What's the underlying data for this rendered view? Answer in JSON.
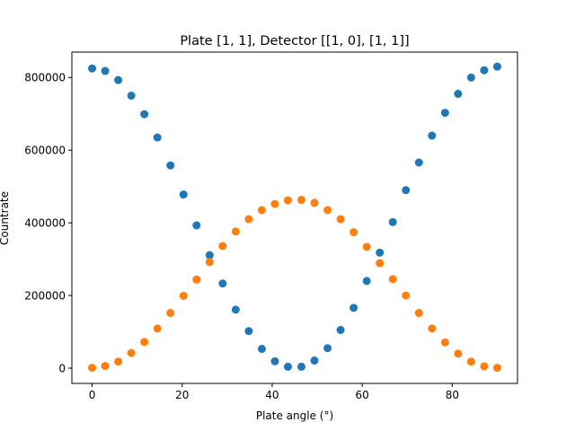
{
  "chart_data": {
    "type": "scatter",
    "title": "Plate [1, 1], Detector [[1, 0], [1, 1]]",
    "xlabel": "Plate angle (°)",
    "ylabel": "Countrate",
    "xlim": [
      -4.5,
      94.5
    ],
    "ylim": [
      -42000,
      870000
    ],
    "xticks": [
      0,
      20,
      40,
      60,
      80
    ],
    "yticks": [
      0,
      200000,
      400000,
      600000,
      800000
    ],
    "grid": false,
    "series": [
      {
        "color": "#1f77b4",
        "x": [
          0,
          2.9,
          5.8,
          8.7,
          11.6,
          14.5,
          17.4,
          20.3,
          23.2,
          26.1,
          29.0,
          31.9,
          34.8,
          37.7,
          40.6,
          43.5,
          46.5,
          49.4,
          52.3,
          55.2,
          58.1,
          61.0,
          63.9,
          66.8,
          69.7,
          72.6,
          75.5,
          78.4,
          81.3,
          84.2,
          87.1,
          90.0
        ],
        "y": [
          825000,
          818000,
          793000,
          750000,
          699000,
          635000,
          558000,
          478000,
          393000,
          311000,
          233000,
          161000,
          102000,
          53000,
          19000,
          4000,
          4000,
          21000,
          55000,
          105000,
          166000,
          240000,
          318000,
          402000,
          490000,
          566000,
          640000,
          703000,
          755000,
          800000,
          820000,
          830000
        ]
      },
      {
        "color": "#ff7f0e",
        "x": [
          0,
          2.9,
          5.8,
          8.7,
          11.6,
          14.5,
          17.4,
          20.3,
          23.2,
          26.1,
          29.0,
          31.9,
          34.8,
          37.7,
          40.6,
          43.5,
          46.5,
          49.4,
          52.3,
          55.2,
          58.1,
          61.0,
          63.9,
          66.8,
          69.7,
          72.6,
          75.5,
          78.4,
          81.3,
          84.2,
          87.1,
          90.0
        ],
        "y": [
          1000,
          6000,
          18000,
          42000,
          72000,
          109000,
          152000,
          199000,
          244000,
          292000,
          336000,
          376000,
          410000,
          435000,
          452000,
          462000,
          463000,
          455000,
          435000,
          410000,
          374000,
          334000,
          289000,
          245000,
          200000,
          152000,
          109000,
          71000,
          40000,
          18000,
          5000,
          1000
        ]
      }
    ]
  }
}
